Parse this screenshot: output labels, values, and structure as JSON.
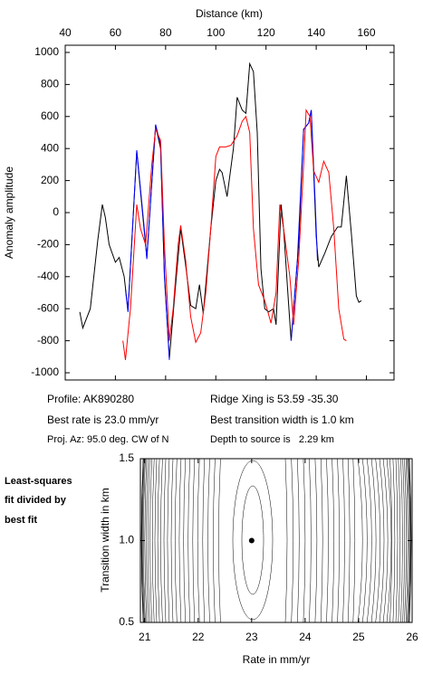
{
  "chart_data": [
    {
      "type": "line",
      "xlabel": "Distance (km)",
      "ylabel": "Anomaly amplitude",
      "xlim": [
        40,
        171
      ],
      "ylim": [
        -1045,
        1045
      ],
      "xticks": [
        40,
        60,
        80,
        100,
        120,
        140,
        160
      ],
      "yticks": [
        1000,
        800,
        600,
        400,
        200,
        0,
        -200,
        -400,
        -600,
        -800,
        -1000
      ],
      "annotations": [
        "Profile: AK890280",
        "Best rate is 23.0 mm/yr",
        "Proj. Az: 95.0 deg. CW of N",
        "Ridge Xing is 53.59 -35.30",
        "Best transition width is 1.0 km",
        "Depth to source is   2.29 km"
      ],
      "series": [
        {
          "color": "#000000",
          "x": [
            45.8,
            47,
            50,
            53,
            54.8,
            56,
            57.5,
            60,
            61.5,
            63.5,
            65,
            68.5,
            71.5,
            72.5,
            76,
            78,
            79.5,
            81.5,
            84,
            86,
            88,
            90,
            92,
            93.5,
            95,
            98,
            100,
            101.5,
            102.5,
            104.5,
            107,
            108.5,
            110.5,
            112,
            113.5,
            115,
            116.5,
            118,
            119.5,
            121,
            123,
            124,
            126,
            127,
            129,
            130,
            133,
            135,
            137,
            138,
            140,
            141,
            143.5,
            146,
            148.5,
            150,
            152,
            154,
            156,
            157,
            158
          ],
          "values": [
            -620,
            -720,
            -600,
            -170,
            50,
            -30,
            -200,
            -310,
            -280,
            -400,
            -610,
            380,
            -120,
            -280,
            540,
            400,
            -400,
            -910,
            -450,
            -100,
            -330,
            -580,
            -600,
            -450,
            -630,
            -100,
            200,
            270,
            250,
            100,
            400,
            720,
            640,
            620,
            930,
            880,
            500,
            -350,
            -600,
            -620,
            -600,
            -700,
            50,
            -100,
            -570,
            -800,
            -200,
            520,
            560,
            640,
            -150,
            -340,
            -250,
            -150,
            -90,
            -90,
            230,
            -130,
            -520,
            -560,
            -550
          ]
        },
        {
          "color": "#0000ff",
          "x": [
            64,
            65,
            68.5,
            71.5,
            72.5,
            76,
            78,
            79.5,
            81.5,
            null,
            130,
            132.5,
            135,
            137,
            138,
            139.5,
            140.5
          ],
          "values": [
            -480,
            -620,
            390,
            -100,
            -290,
            550,
            420,
            -380,
            -920,
            null,
            -800,
            -300,
            520,
            560,
            640,
            100,
            -300
          ]
        },
        {
          "color": "#ff0000",
          "x": [
            63,
            64,
            66,
            68.5,
            70,
            72,
            74.5,
            76,
            78,
            79.5,
            81.5,
            83,
            85,
            86,
            88,
            90,
            92,
            94,
            96,
            98,
            100,
            101.5,
            104,
            106,
            108.5,
            110.5,
            112,
            113.5,
            115,
            117,
            119.5,
            122,
            124,
            125.5,
            127,
            129.5,
            131,
            133,
            135,
            136,
            137.5,
            139,
            141,
            143,
            145,
            147,
            149,
            151,
            152
          ],
          "values": [
            -800,
            -920,
            -600,
            50,
            -100,
            -200,
            300,
            520,
            450,
            -200,
            -800,
            -600,
            -200,
            -80,
            -300,
            -650,
            -810,
            -750,
            -500,
            -100,
            350,
            410,
            410,
            420,
            480,
            570,
            600,
            500,
            -100,
            -450,
            -550,
            -690,
            -500,
            50,
            -100,
            -400,
            -700,
            -300,
            300,
            640,
            600,
            260,
            190,
            320,
            250,
            -100,
            -600,
            -790,
            -800
          ]
        }
      ]
    },
    {
      "type": "contour",
      "xlabel": "Rate in mm/yr",
      "ylabel": "Transition width in km",
      "xlim": [
        20.92,
        26
      ],
      "ylim": [
        0.5,
        1.5
      ],
      "xticks": [
        21,
        22,
        23,
        24,
        25,
        26
      ],
      "yticks": [
        0.5,
        {
          "value": 1,
          "label": "1.0"
        },
        1.5
      ],
      "note": [
        "Least-squares",
        "fit divided by",
        "best fit"
      ],
      "x": [
        23.0
      ],
      "values": [
        1.0
      ]
    }
  ]
}
